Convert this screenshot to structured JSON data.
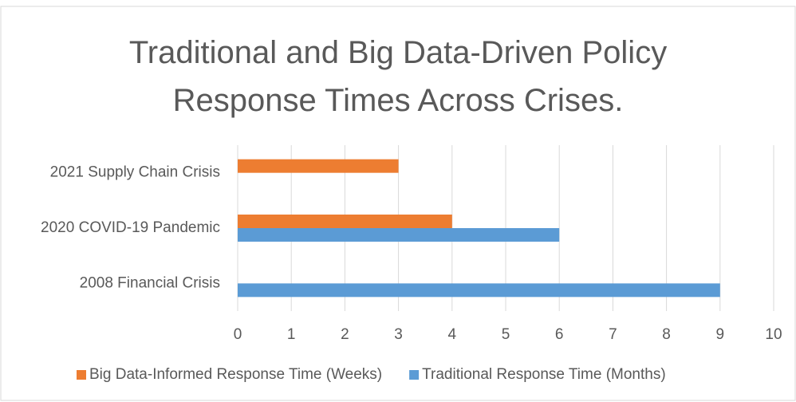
{
  "chart_data": {
    "type": "hbar",
    "title": "Traditional and Big Data-Driven Policy Response Times Across Crises.",
    "categories": [
      "2008 Financial Crisis",
      "2020 COVID-19 Pandemic",
      "2021 Supply Chain Crisis"
    ],
    "series": [
      {
        "name": "Big Data-Informed Response Time (Weeks)",
        "color": "#ed7d31",
        "values": [
          null,
          4,
          3
        ]
      },
      {
        "name": "Traditional Response Time (Months)",
        "color": "#5b9bd5",
        "values": [
          9,
          6,
          null
        ]
      }
    ],
    "xlim": [
      0,
      10
    ],
    "xticks": [
      0,
      1,
      2,
      3,
      4,
      5,
      6,
      7,
      8,
      9,
      10
    ],
    "grid": true,
    "legend": "bottom"
  }
}
